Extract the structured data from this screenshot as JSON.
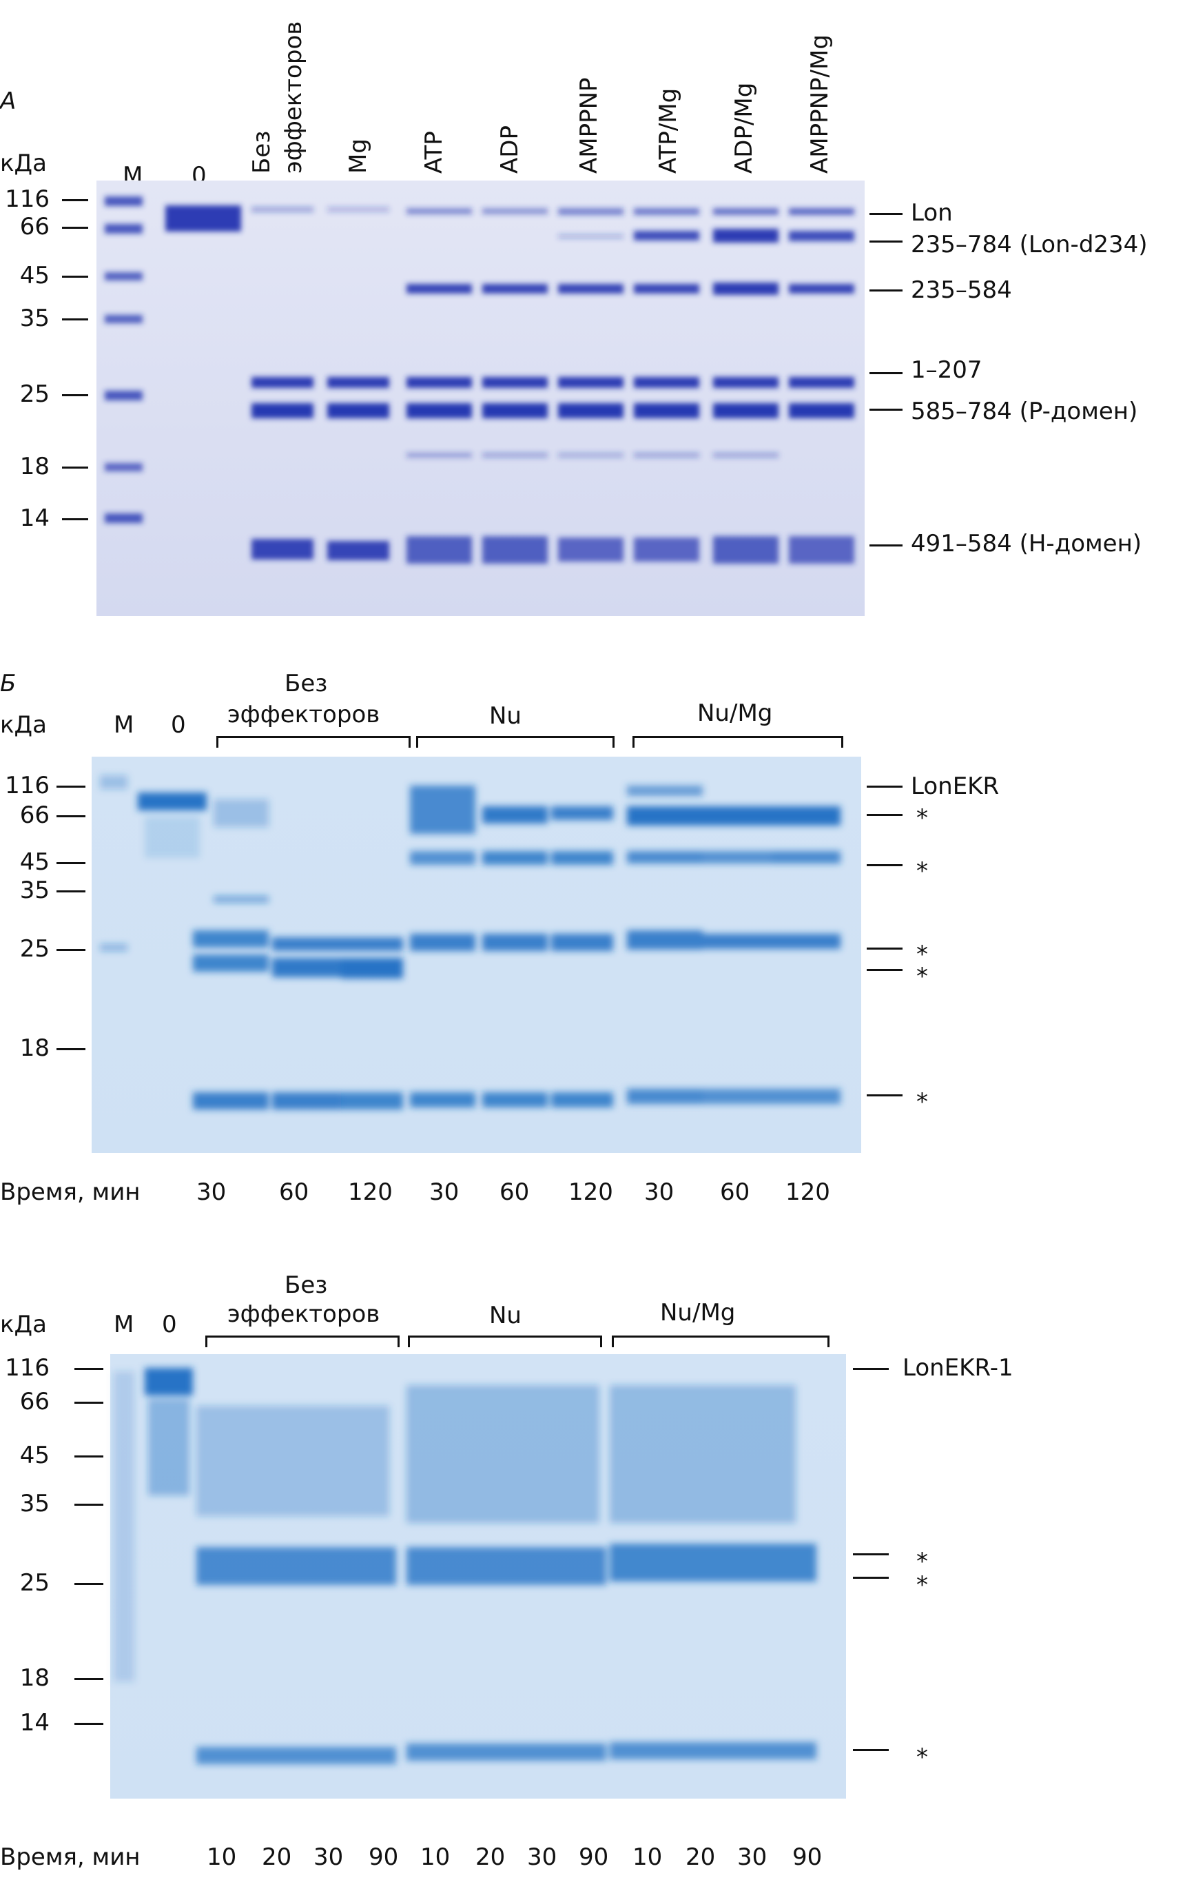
{
  "panelA": {
    "letter": "А",
    "kda": "кДа",
    "marker_lane": "М",
    "zero_lane": "0",
    "lanes": [
      "Без эффекторов",
      "Mg",
      "ATP",
      "ADP",
      "AMPPNP",
      "ATP/Mg",
      "ADP/Mg",
      "AMPPNP/Mg"
    ],
    "mw": [
      "116",
      "66",
      "45",
      "35",
      "25",
      "18",
      "14"
    ],
    "bands": [
      "Lon",
      "235–784 (Lon-d234)",
      "235–584",
      "1–207",
      "585–784 (P-домен)",
      "491–584 (H-домен)"
    ]
  },
  "panelB": {
    "letter": "Б",
    "kda": "кДа",
    "marker_lane": "М",
    "zero_lane": "0",
    "groups": [
      "Без эффекторов",
      "Nu",
      "Nu/Mg"
    ],
    "mw": [
      "116",
      "66",
      "45",
      "35",
      "25",
      "18"
    ],
    "bands": [
      "LonEKR",
      "*",
      "*",
      "*",
      "*",
      "*"
    ],
    "time_label": "Время, мин",
    "times": [
      "30",
      "60",
      "120",
      "30",
      "60",
      "120",
      "30",
      "60",
      "120"
    ]
  },
  "panelC": {
    "kda": "кДа",
    "marker_lane": "М",
    "zero_lane": "0",
    "groups": [
      "Без эффекторов",
      "Nu",
      "Nu/Mg"
    ],
    "mw": [
      "116",
      "66",
      "45",
      "35",
      "25",
      "18",
      "14"
    ],
    "bands": [
      "LonEKR-1",
      "*",
      "*",
      "*"
    ],
    "time_label": "Время, мин",
    "times": [
      "10",
      "20",
      "30",
      "90",
      "10",
      "20",
      "30",
      "90",
      "10",
      "20",
      "30",
      "90"
    ]
  },
  "colors": {
    "gelA_bg": "#d9def2",
    "gelA_band": "#1f2fae",
    "gelB_bg": "#d6e6f6",
    "gelB_band": "#1a6fc4",
    "marker_band": "#3b58c8"
  }
}
